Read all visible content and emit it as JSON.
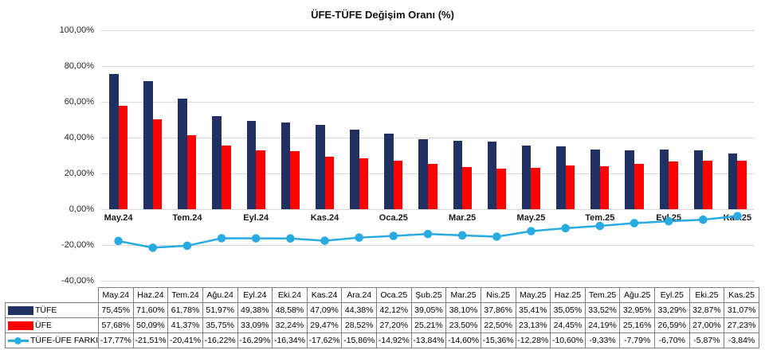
{
  "chart_data": {
    "type": "combo-bar-line",
    "title": "ÜFE-TÜFE Değişim Oranı (%)",
    "categories": [
      "May.24",
      "Haz.24",
      "Tem.24",
      "Ağu.24",
      "Eyl.24",
      "Eki.24",
      "Kas.24",
      "Ara.24",
      "Oca.25",
      "Şub.25",
      "Mar.25",
      "Nis.25",
      "May.25",
      "Haz.25",
      "Tem.25",
      "Ağu.25",
      "Eyl.25",
      "Eki.25",
      "Kas.25"
    ],
    "x_axis_labels": [
      "May.24",
      "Tem.24",
      "Eyl.24",
      "Kas.24",
      "Oca.25",
      "Mar.25",
      "May.25",
      "Tem.25",
      "Eyl.25",
      "Kas.25"
    ],
    "ylim": [
      -40,
      100
    ],
    "grid": true,
    "gridline_color": "#d9d9d9",
    "legend_position": "table-left-column",
    "y_ticks": [
      {
        "value": 100,
        "label": "100,00%"
      },
      {
        "value": 80,
        "label": "80,00%"
      },
      {
        "value": 60,
        "label": "60,00%"
      },
      {
        "value": 40,
        "label": "40,00%"
      },
      {
        "value": 20,
        "label": "20,00%"
      },
      {
        "value": 0,
        "label": "0,00%"
      },
      {
        "value": -20,
        "label": "-20,00%"
      },
      {
        "value": -40,
        "label": "-40,00%"
      }
    ],
    "series": [
      {
        "name": "TÜFE",
        "type": "bar",
        "color": "#1f3061",
        "values": [
          75.45,
          71.6,
          61.78,
          51.97,
          49.38,
          48.58,
          47.09,
          44.38,
          42.12,
          39.05,
          38.1,
          37.86,
          35.41,
          35.05,
          33.52,
          32.95,
          33.29,
          32.87,
          31.07
        ],
        "display": [
          "75,45%",
          "71,60%",
          "61,78%",
          "51,97%",
          "49,38%",
          "48,58%",
          "47,09%",
          "44,38%",
          "42,12%",
          "39,05%",
          "38,10%",
          "37,86%",
          "35,41%",
          "35,05%",
          "33,52%",
          "32,95%",
          "33,29%",
          "32,87%",
          "31,07%"
        ]
      },
      {
        "name": "ÜFE",
        "type": "bar",
        "color": "#ff0000",
        "values": [
          57.68,
          50.09,
          41.37,
          35.75,
          33.09,
          32.24,
          29.47,
          28.52,
          27.2,
          25.21,
          23.5,
          22.5,
          23.13,
          24.45,
          24.19,
          25.16,
          26.59,
          27.0,
          27.23
        ],
        "display": [
          "57,68%",
          "50,09%",
          "41,37%",
          "35,75%",
          "33,09%",
          "32,24%",
          "29,47%",
          "28,52%",
          "27,20%",
          "25,21%",
          "23,50%",
          "22,50%",
          "23,13%",
          "24,45%",
          "24,19%",
          "25,16%",
          "26,59%",
          "27,00%",
          "27,23%"
        ]
      },
      {
        "name": "TÜFE-ÜFE FARKI",
        "type": "line",
        "color": "#29abe2",
        "values": [
          -17.77,
          -21.51,
          -20.41,
          -16.22,
          -16.29,
          -16.34,
          -17.62,
          -15.86,
          -14.92,
          -13.84,
          -14.6,
          -15.36,
          -12.28,
          -10.6,
          -9.33,
          -7.79,
          -6.7,
          -5.87,
          -3.84
        ],
        "display": [
          "-17,77%",
          "-21,51%",
          "-20,41%",
          "-16,22%",
          "-16,29%",
          "-16,34%",
          "-17,62%",
          "-15,86%",
          "-14,92%",
          "-13,84%",
          "-14,60%",
          "-15,36%",
          "-12,28%",
          "-10,60%",
          "-9,33%",
          "-7,79%",
          "-6,70%",
          "-5,87%",
          "-3,84%"
        ]
      }
    ]
  }
}
